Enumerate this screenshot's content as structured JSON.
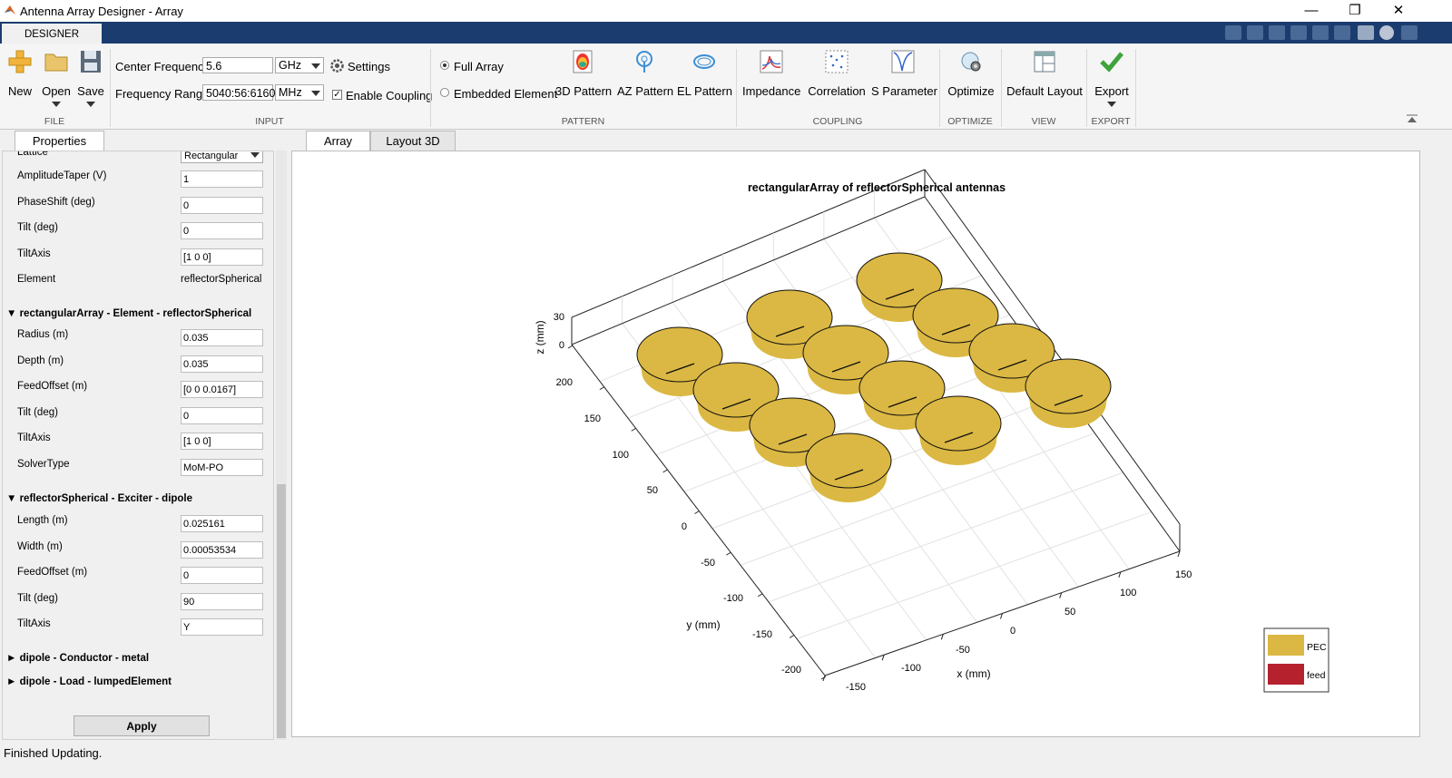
{
  "window": {
    "title": "Antenna Array Designer - Array",
    "minimize": "—",
    "restore": "❐",
    "close": "✕"
  },
  "ribbon": {
    "tab": "DESIGNER",
    "file": {
      "group": "FILE",
      "new": "New",
      "open": "Open",
      "save": "Save"
    },
    "input": {
      "group": "INPUT",
      "center_frequency_label": "Center Frequency",
      "center_frequency_value": "5.6",
      "center_frequency_unit": "GHz",
      "frequency_range_label": "Frequency Range",
      "frequency_range_value": "5040:56:6160",
      "frequency_range_unit": "MHz",
      "settings": "Settings",
      "enable_coupling": "Enable Coupling",
      "enable_coupling_checked": true
    },
    "pattern": {
      "group": "PATTERN",
      "full_array": "Full Array",
      "embedded_element": "Embedded Element",
      "pattern_3d": "3D Pattern",
      "az_pattern": "AZ Pattern",
      "el_pattern": "EL Pattern"
    },
    "coupling": {
      "group": "COUPLING",
      "impedance": "Impedance",
      "correlation": "Correlation",
      "s_parameter": "S Parameter"
    },
    "optimize": {
      "group": "OPTIMIZE",
      "optimize": "Optimize"
    },
    "view": {
      "group": "VIEW",
      "default_layout": "Default Layout"
    },
    "export": {
      "group": "EXPORT",
      "export": "Export"
    }
  },
  "properties": {
    "tab": "Properties",
    "lattice_label": "Lattice",
    "lattice_value": "Rectangular",
    "array_rows": [
      {
        "label": "AmplitudeTaper (V)",
        "value": "1"
      },
      {
        "label": "PhaseShift (deg)",
        "value": "0"
      },
      {
        "label": "Tilt (deg)",
        "value": "0"
      },
      {
        "label": "TiltAxis",
        "value": "[1 0 0]"
      }
    ],
    "element_label": "Element",
    "element_value": "reflectorSpherical",
    "section_element": "rectangularArray - Element - reflectorSpherical",
    "element_rows": [
      {
        "label": "Radius (m)",
        "value": "0.035"
      },
      {
        "label": "Depth (m)",
        "value": "0.035"
      },
      {
        "label": "FeedOffset (m)",
        "value": "[0 0 0.0167]"
      },
      {
        "label": "Tilt (deg)",
        "value": "0"
      },
      {
        "label": "TiltAxis",
        "value": "[1 0 0]"
      },
      {
        "label": "SolverType",
        "value": "MoM-PO"
      }
    ],
    "section_exciter": "reflectorSpherical - Exciter - dipole",
    "exciter_rows": [
      {
        "label": "Length (m)",
        "value": "0.025161"
      },
      {
        "label": "Width (m)",
        "value": "0.00053534"
      },
      {
        "label": "FeedOffset (m)",
        "value": "0"
      },
      {
        "label": "Tilt (deg)",
        "value": "90"
      },
      {
        "label": "TiltAxis",
        "value": "Y"
      }
    ],
    "section_conductor": "dipole - Conductor - metal",
    "section_load": "dipole - Load - lumpedElement",
    "apply": "Apply"
  },
  "view_tabs": {
    "array": "Array",
    "layout3d": "Layout 3D"
  },
  "plot": {
    "title": "rectangularArray of reflectorSpherical antennas",
    "z_label": "z (mm)",
    "y_label": "y (mm)",
    "x_label": "x (mm)",
    "z_ticks": [
      "30",
      "0"
    ],
    "y_ticks": [
      "200",
      "150",
      "100",
      "50",
      "0",
      "-50",
      "-100",
      "-150",
      "-200"
    ],
    "x_ticks": [
      "150",
      "100",
      "50",
      "0",
      "-50",
      "-100",
      "-150"
    ],
    "legend": [
      {
        "label": "PEC",
        "color": "#dbb843"
      },
      {
        "label": "feed",
        "color": "#b5222e"
      }
    ],
    "element_color": "#dbb843",
    "element_grid": {
      "rows": 3,
      "cols": 4
    }
  },
  "status": "Finished Updating."
}
